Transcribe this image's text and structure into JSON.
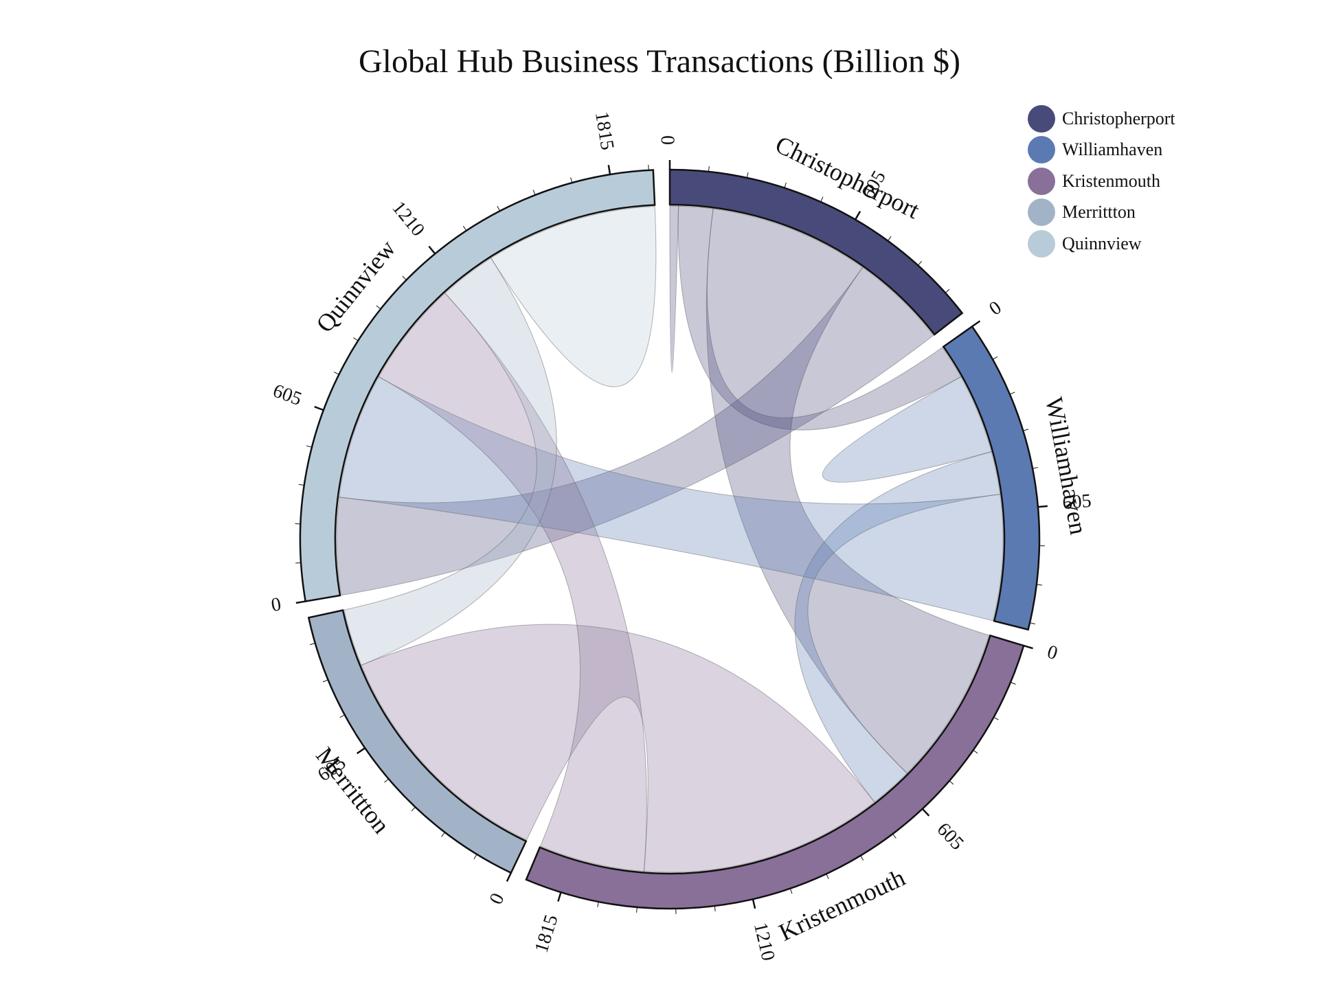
{
  "chart_data": {
    "type": "chord",
    "title": "Global Hub Business Transactions (Billion $)",
    "unit": "Billion $",
    "tick_step": 605,
    "groups": [
      {
        "name": "Christopherport",
        "color": "#484a7a",
        "total": 1050
      },
      {
        "name": "Williamhaven",
        "color": "#5b7ab2",
        "total": 990
      },
      {
        "name": "Kristenmouth",
        "color": "#887099",
        "total": 1930
      },
      {
        "name": "Merrittton",
        "color": "#a2b3c8",
        "total": 1050
      },
      {
        "name": "Quinnview",
        "color": "#b8cbd8",
        "total": 1950
      }
    ],
    "matrix": [
      [
        30,
        120,
        560,
        0,
        340
      ],
      [
        120,
        280,
        150,
        0,
        440
      ],
      [
        560,
        150,
        0,
        850,
        370
      ],
      [
        0,
        0,
        850,
        0,
        200
      ],
      [
        340,
        440,
        370,
        200,
        600
      ]
    ],
    "tick_labels": [
      "0",
      "605",
      "1210",
      "1815"
    ]
  },
  "legend": {
    "items": [
      {
        "label": "Christopherport",
        "color": "#484a7a"
      },
      {
        "label": "Williamhaven",
        "color": "#5b7ab2"
      },
      {
        "label": "Kristenmouth",
        "color": "#887099"
      },
      {
        "label": "Merrittton",
        "color": "#a2b3c8"
      },
      {
        "label": "Quinnview",
        "color": "#b8cbd8"
      }
    ]
  }
}
